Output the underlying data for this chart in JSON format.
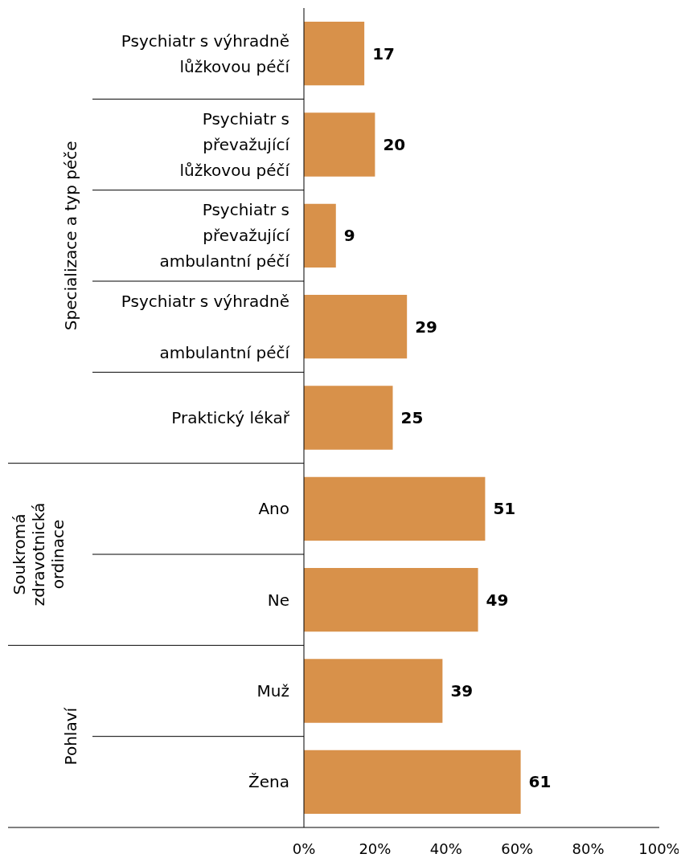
{
  "chart_data": {
    "type": "bar",
    "orientation": "horizontal",
    "categories": [
      "Psychiatr s výhradně\nlůžkovou péčí",
      "Psychiatr s\npřevažující\nlůžkovou péčí",
      "Psychiatr s\npřevažující\nambulantní péčí",
      "Psychiatr s výhradně\n\nambulantní péčí",
      "Praktický lékař",
      "Ano",
      "Ne",
      "Muž",
      "Žena"
    ],
    "values": [
      17,
      20,
      9,
      29,
      25,
      51,
      49,
      39,
      61
    ],
    "color": "#d8914a",
    "xlim": [
      0,
      100
    ],
    "xticks": [
      {
        "value": 0,
        "label": "0%"
      },
      {
        "value": 20,
        "label": "20%"
      },
      {
        "value": 40,
        "label": "40%"
      },
      {
        "value": 60,
        "label": "60%"
      },
      {
        "value": 80,
        "label": "80%"
      },
      {
        "value": 100,
        "label": "100%"
      }
    ],
    "data_labels": true,
    "grid": false,
    "legend": false,
    "annotations": [
      "Specializace a typ péče",
      "Soukromá\nzdravotnická\nordinace",
      "Pohlaví"
    ]
  }
}
